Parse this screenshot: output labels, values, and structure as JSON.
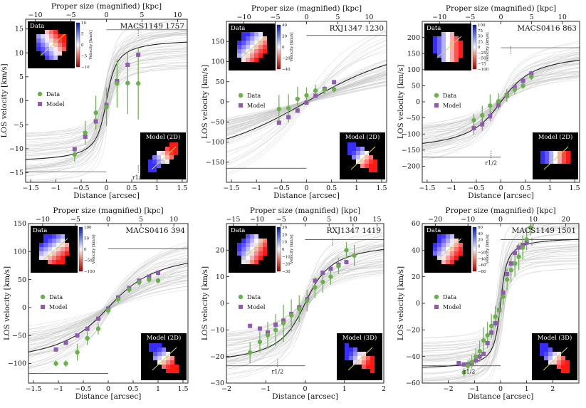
{
  "figure": {
    "axis_labels": {
      "x_bottom": "Distance [arcsec]",
      "x_top": "Proper size (magnified) [kpc]",
      "y_left": "LOS velocity [km/s]",
      "colorbar": "Velocity [km/s]"
    },
    "legend": {
      "data": "Data",
      "model": "Model"
    },
    "inset_labels": {
      "data": "Data",
      "r_half": "r1/2"
    },
    "colors": {
      "data_marker": "#6ab04c",
      "model_marker": "#8e5bb0",
      "model_curve": "#222222",
      "posterior_curves": "#c4c4c4",
      "reference_line": "#333333"
    }
  },
  "chart_data": [
    {
      "type": "line",
      "title": "MACS1149 1757",
      "model_label": "Model (2D)",
      "xlim": [
        -1.6,
        1.6
      ],
      "ylim": [
        -17,
        17
      ],
      "xticks": [
        -1.5,
        -1.0,
        -0.5,
        0.0,
        0.5,
        1.0,
        1.5
      ],
      "yticks": [
        -15,
        -10,
        -5,
        0,
        5,
        10,
        15
      ],
      "top_ticks": [
        -10,
        -5,
        0,
        5,
        10
      ],
      "kpc_per_arcsec": 7.1,
      "curve": {
        "vmax": 13,
        "rt": 0.15,
        "x0": 0.0
      },
      "rhalf": 0.63,
      "hline": 14.8,
      "hline_left": -14.8,
      "data_points": {
        "x": [
          -0.63,
          -0.42,
          -0.21,
          0.0,
          0.21,
          0.42,
          0.63
        ],
        "y": [
          -11.2,
          -6.7,
          -2.5,
          -1.3,
          3.6,
          3.7,
          3.6
        ],
        "err": [
          1.5,
          2.5,
          3.5,
          4.0,
          5.0,
          6.5,
          7.5
        ]
      },
      "model_points": {
        "x": [
          -0.63,
          -0.42,
          -0.21,
          0.0,
          0.21,
          0.42,
          0.63
        ],
        "y": [
          -10.1,
          -7.5,
          -4.3,
          -0.9,
          4.1,
          7.5,
          9.6
        ]
      },
      "colorbar_ticks": [
        10,
        5,
        0,
        -5,
        -10
      ]
    },
    {
      "type": "line",
      "title": "RXJ1347 1230",
      "model_label": "Model (2D)",
      "xlim": [
        -1.6,
        1.6
      ],
      "ylim": [
        -200,
        200
      ],
      "xticks": [
        -1.5,
        -1.0,
        -0.5,
        0.0,
        0.5,
        1.0,
        1.5
      ],
      "yticks": [
        -150,
        -100,
        -50,
        0,
        50,
        100,
        150
      ],
      "top_ticks": [
        -10,
        -5,
        0,
        5,
        10
      ],
      "kpc_per_arcsec": 8.0,
      "curve": {
        "vmax": 200,
        "rt": 1.8,
        "x0": 0.0
      },
      "rhalf": null,
      "hline": 165,
      "hline_left": -165,
      "data_points": {
        "x": [
          -0.55,
          -0.36,
          -0.18,
          0.0,
          0.18,
          0.36,
          0.55
        ],
        "y": [
          -18,
          -16,
          7,
          16,
          28,
          30,
          31
        ],
        "err": [
          35,
          35,
          30,
          20,
          15,
          10,
          8
        ]
      },
      "model_points": {
        "x": [
          -0.55,
          -0.36,
          -0.18,
          0.0,
          0.18,
          0.36,
          0.55
        ],
        "y": [
          -52,
          -38,
          -22,
          -2,
          15,
          32,
          49
        ]
      },
      "colorbar_ticks": [
        40,
        20,
        0,
        -20,
        -40
      ]
    },
    {
      "type": "line",
      "title": "MACS0416 863",
      "model_label": "Model (2D)",
      "xlim": [
        -1.6,
        1.6
      ],
      "ylim": [
        -250,
        250
      ],
      "xticks": [
        -1.5,
        -1.0,
        -0.5,
        0.0,
        0.5,
        1.0,
        1.5
      ],
      "yticks": [
        -200,
        -150,
        -100,
        -50,
        0,
        50,
        100,
        150,
        200
      ],
      "top_ticks": [
        -10,
        -5,
        0,
        5,
        10
      ],
      "kpc_per_arcsec": 8.0,
      "curve": {
        "vmax": 160,
        "rt": 0.5,
        "x0": 0.0
      },
      "rhalf": -0.2,
      "hline": 168,
      "hline_left": -172,
      "data_points": {
        "x": [
          -0.55,
          -0.38,
          -0.22,
          -0.05,
          0.12,
          0.28,
          0.45,
          0.62
        ],
        "y": [
          -57,
          -42,
          -12,
          2,
          20,
          38,
          50,
          78
        ],
        "err": [
          20,
          30,
          35,
          25,
          20,
          15,
          10,
          10
        ]
      },
      "model_points": {
        "x": [
          -0.55,
          -0.38,
          -0.22,
          -0.05,
          0.12,
          0.28,
          0.45,
          0.62
        ],
        "y": [
          -82,
          -70,
          -45,
          -10,
          20,
          45,
          65,
          88
        ],
        "err": [
          20,
          20,
          15,
          10,
          10,
          10,
          10,
          8
        ]
      },
      "colorbar_ticks": [
        100,
        75,
        50,
        25,
        0,
        -25,
        -50,
        -75,
        -100
      ]
    },
    {
      "type": "line",
      "title": "MACS0416 394",
      "model_label": "Model (2D)",
      "xlim": [
        -1.6,
        1.6
      ],
      "ylim": [
        -135,
        150
      ],
      "xticks": [
        -1.5,
        -1.0,
        -0.5,
        0.0,
        0.5,
        1.0,
        1.5
      ],
      "yticks": [
        -100,
        -50,
        0,
        50,
        100,
        150
      ],
      "top_ticks": [
        -10,
        -5,
        0,
        5,
        10
      ],
      "kpc_per_arcsec": 7.6,
      "curve": {
        "vmax": 110,
        "rt": 0.75,
        "x0": 0.0
      },
      "rhalf": null,
      "hline": 105,
      "hline_left": -118,
      "data_points": {
        "x": [
          -1.05,
          -0.85,
          -0.62,
          -0.42,
          -0.2,
          0.0,
          0.2,
          0.42,
          0.62,
          0.82,
          1.0
        ],
        "y": [
          -100,
          -100,
          -80,
          -55,
          -38,
          -5,
          15,
          32,
          45,
          50,
          48
        ],
        "err": [
          5,
          6,
          15,
          12,
          10,
          8,
          7,
          6,
          6,
          6,
          5
        ]
      },
      "model_points": {
        "x": [
          -1.05,
          -0.85,
          -0.62,
          -0.42,
          -0.2,
          0.0,
          0.2,
          0.42,
          0.62,
          0.82,
          1.0
        ],
        "y": [
          -75,
          -63,
          -50,
          -38,
          -20,
          -2,
          18,
          35,
          48,
          55,
          62
        ]
      },
      "colorbar_ticks": [
        100,
        50,
        0,
        -50,
        -100
      ]
    },
    {
      "type": "line",
      "title": "RXJ1347 1419",
      "model_label": "Model (3D)",
      "xlim": [
        -2,
        2
      ],
      "ylim": [
        -30,
        30
      ],
      "xticks": [
        -2,
        -1,
        0,
        1,
        2
      ],
      "yticks": [
        -30,
        -20,
        -10,
        0,
        10,
        20
      ],
      "top_ticks": [
        -15,
        -10,
        -5,
        0,
        5,
        10,
        15
      ],
      "kpc_per_arcsec": 8.2,
      "curve": {
        "vmax": 24,
        "rt": 0.5,
        "x0": 0.0
      },
      "rhalf": -0.7,
      "hline": 24,
      "hline_left": -23.5,
      "data_points": {
        "x": [
          -1.4,
          -1.15,
          -0.95,
          -0.75,
          -0.55,
          -0.35,
          -0.15,
          0.05,
          0.25,
          0.45,
          0.65,
          0.85,
          1.05,
          1.25
        ],
        "y": [
          -18.5,
          -14.5,
          -12,
          -10,
          -7.5,
          -4.5,
          -2,
          1,
          6,
          8,
          10,
          14,
          20,
          18
        ],
        "err": [
          4,
          4,
          5,
          6,
          7,
          6,
          5,
          4,
          4,
          4,
          3,
          3,
          3,
          4
        ]
      },
      "model_points": {
        "x": [
          -1.4,
          -1.15,
          -0.95,
          -0.75,
          -0.55,
          -0.35,
          -0.15,
          0.05,
          0.25,
          0.45,
          0.65,
          0.85,
          1.05
        ],
        "y": [
          -8.5,
          -9.5,
          -11,
          -8,
          -6.5,
          -4,
          -1.5,
          1.5,
          8.5,
          11.5,
          13,
          14.5,
          15.5
        ]
      },
      "colorbar_ticks": [
        30,
        20,
        10,
        0,
        -10,
        -20,
        -30
      ]
    },
    {
      "type": "line",
      "title": "MACS1149 1501",
      "model_label": "Model (3D)",
      "xlim": [
        -3,
        3
      ],
      "ylim": [
        -60,
        60
      ],
      "xticks": [
        -2,
        -1,
        0,
        1,
        2
      ],
      "yticks": [
        -60,
        -40,
        -20,
        0,
        20,
        40,
        60
      ],
      "top_ticks": [
        -20,
        -10,
        0,
        10,
        20
      ],
      "kpc_per_arcsec": 8.0,
      "curve": {
        "vmax": 50,
        "rt": 0.18,
        "x0": 0.0
      },
      "rhalf": -1.2,
      "hline": 48,
      "hline_left": -47,
      "data_points": {
        "x": [
          -1.4,
          -1.25,
          -1.1,
          -0.95,
          -0.8,
          -0.65,
          -0.5,
          -0.35,
          -0.2,
          -0.05,
          0.1,
          0.25,
          0.4,
          0.55,
          0.7,
          0.85,
          1.0,
          1.15
        ],
        "y": [
          -52,
          -47,
          -44,
          -40,
          -36,
          -28,
          -24,
          -17,
          -10,
          -5,
          5,
          18,
          25,
          30,
          35,
          42,
          48,
          57
        ],
        "err": [
          3,
          4,
          5,
          6,
          8,
          10,
          10,
          9,
          8,
          6,
          6,
          8,
          9,
          10,
          10,
          9,
          8,
          6
        ]
      },
      "model_points": {
        "x": [
          -1.6,
          -1.4,
          -1.25,
          -1.1,
          -0.95,
          -0.8,
          -0.65,
          -0.5,
          -0.35,
          -0.2,
          -0.05,
          0.1,
          0.25,
          0.4,
          0.55,
          0.7,
          0.85,
          1.0
        ],
        "y": [
          -45,
          -46,
          -46,
          -45,
          -43,
          -40,
          -38,
          -30,
          -22,
          -15,
          -5,
          8,
          22,
          30,
          38,
          42,
          44,
          46
        ]
      },
      "colorbar_ticks": [
        60,
        40,
        20,
        0,
        -20,
        -40,
        -60,
        -80
      ]
    }
  ]
}
